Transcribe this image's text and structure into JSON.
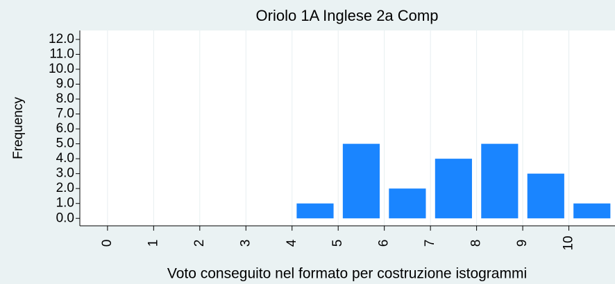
{
  "chart_data": {
    "type": "histogram",
    "title": "Oriolo 1A Inglese 2a Comp",
    "x_label": "Voto conseguito nel formato per costruzione istogrammi",
    "y_label": "Frequency",
    "bins": [
      4,
      5,
      6,
      7,
      8,
      9,
      10,
      11
    ],
    "counts": [
      1,
      5,
      2,
      4,
      5,
      3,
      1
    ],
    "color": "#1a85ff",
    "xlim": [
      -0.6,
      11
    ],
    "xticks": [
      0,
      1,
      2,
      3,
      4,
      5,
      6,
      7,
      8,
      9,
      10
    ],
    "ylim": [
      -0.5,
      12.6
    ],
    "yticks": [
      {
        "value": 0,
        "label": "0.0"
      },
      {
        "value": 1,
        "label": "1.0"
      },
      {
        "value": 2,
        "label": "2.0"
      },
      {
        "value": 3,
        "label": "3.0"
      },
      {
        "value": 4,
        "label": "4.0"
      },
      {
        "value": 5,
        "label": "5.0"
      },
      {
        "value": 6,
        "label": "6.0"
      },
      {
        "value": 7,
        "label": "7.0"
      },
      {
        "value": 8,
        "label": "8.0"
      },
      {
        "value": 9,
        "label": "9.0"
      },
      {
        "value": 10,
        "label": "10.0"
      },
      {
        "value": 11,
        "label": "11.0"
      },
      {
        "value": 12,
        "label": "12.0"
      }
    ],
    "grid": true
  }
}
